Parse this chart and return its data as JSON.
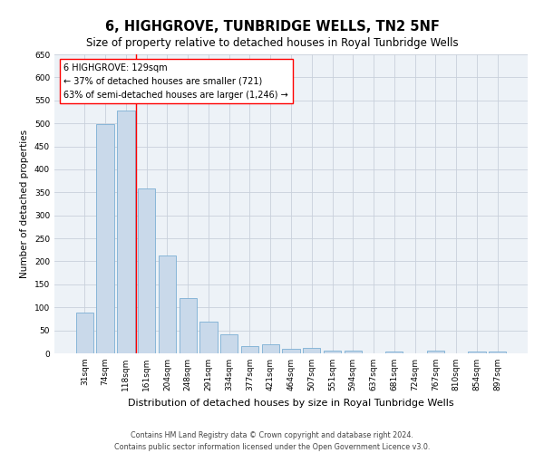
{
  "title": "6, HIGHGROVE, TUNBRIDGE WELLS, TN2 5NF",
  "subtitle": "Size of property relative to detached houses in Royal Tunbridge Wells",
  "xlabel": "Distribution of detached houses by size in Royal Tunbridge Wells",
  "ylabel": "Number of detached properties",
  "footer_line1": "Contains HM Land Registry data © Crown copyright and database right 2024.",
  "footer_line2": "Contains public sector information licensed under the Open Government Licence v3.0.",
  "categories": [
    "31sqm",
    "74sqm",
    "118sqm",
    "161sqm",
    "204sqm",
    "248sqm",
    "291sqm",
    "334sqm",
    "377sqm",
    "421sqm",
    "464sqm",
    "507sqm",
    "551sqm",
    "594sqm",
    "637sqm",
    "681sqm",
    "724sqm",
    "767sqm",
    "810sqm",
    "854sqm",
    "897sqm"
  ],
  "values": [
    88,
    498,
    527,
    358,
    212,
    120,
    68,
    42,
    15,
    19,
    10,
    12,
    6,
    5,
    0,
    4,
    0,
    5,
    0,
    4,
    4
  ],
  "bar_color": "#c9d9ea",
  "bar_edge_color": "#7bafd4",
  "grid_color": "#c8d0db",
  "background_color": "#edf2f7",
  "property_line_x": 2.5,
  "annotation_text": "6 HIGHGROVE: 129sqm\n← 37% of detached houses are smaller (721)\n63% of semi-detached houses are larger (1,246) →",
  "ylim": [
    0,
    650
  ],
  "yticks": [
    0,
    50,
    100,
    150,
    200,
    250,
    300,
    350,
    400,
    450,
    500,
    550,
    600,
    650
  ],
  "title_fontsize": 10.5,
  "subtitle_fontsize": 8.5,
  "xlabel_fontsize": 8,
  "ylabel_fontsize": 7.5,
  "tick_fontsize": 6.5,
  "annotation_fontsize": 7,
  "footer_fontsize": 5.8
}
